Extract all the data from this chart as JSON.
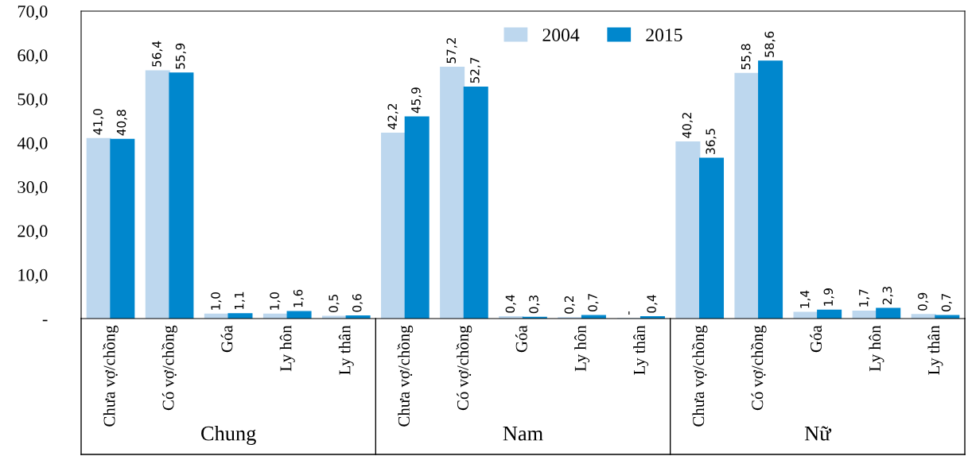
{
  "chart_data": {
    "type": "bar",
    "categories": [
      "Chưa vợ/chồng",
      "Có vợ/chồng",
      "Góa",
      "Ly hôn",
      "Ly thân",
      "Chưa vợ/chồng",
      "Có vợ/chồng",
      "Góa",
      "Ly hôn",
      "Ly thân",
      "Chưa vợ/chồng",
      "Có vợ/chồng",
      "Góa",
      "Ly hôn",
      "Ly thân"
    ],
    "series": [
      {
        "name": "2004",
        "color": "#bdd7ee",
        "values": [
          41.0,
          56.4,
          1.0,
          1.0,
          0.5,
          42.2,
          57.2,
          0.4,
          0.2,
          0,
          40.2,
          55.8,
          1.4,
          1.7,
          0.9
        ],
        "value_labels": [
          "41,0",
          "56,4",
          "1,0",
          "1,0",
          "0,5",
          "42,2",
          "57,2",
          "0,4",
          "0,2",
          "-",
          "40,2",
          "55,8",
          "1,4",
          "1,7",
          "0,9"
        ]
      },
      {
        "name": "2015",
        "color": "#0087cd",
        "values": [
          40.8,
          55.9,
          1.1,
          1.6,
          0.6,
          45.9,
          52.7,
          0.3,
          0.7,
          0.4,
          36.5,
          58.6,
          1.9,
          2.3,
          0.7
        ],
        "value_labels": [
          "40,8",
          "55,9",
          "1,1",
          "1,6",
          "0,6",
          "45,9",
          "52,7",
          "0,3",
          "0,7",
          "0,4",
          "36,5",
          "58,6",
          "1,9",
          "2,3",
          "0,7"
        ]
      }
    ],
    "ylim": [
      0,
      70
    ],
    "yticks": [
      {
        "value": 0,
        "label": "-"
      },
      {
        "value": 10,
        "label": "10,0"
      },
      {
        "value": 20,
        "label": "20,0"
      },
      {
        "value": 30,
        "label": "30,0"
      },
      {
        "value": 40,
        "label": "40,0"
      },
      {
        "value": 50,
        "label": "50,0"
      },
      {
        "value": 60,
        "label": "60,0"
      },
      {
        "value": 70,
        "label": "70,0"
      }
    ],
    "annotations": [
      "Chung",
      "Nam",
      "Nữ"
    ],
    "legend": "top",
    "grid": false
  }
}
